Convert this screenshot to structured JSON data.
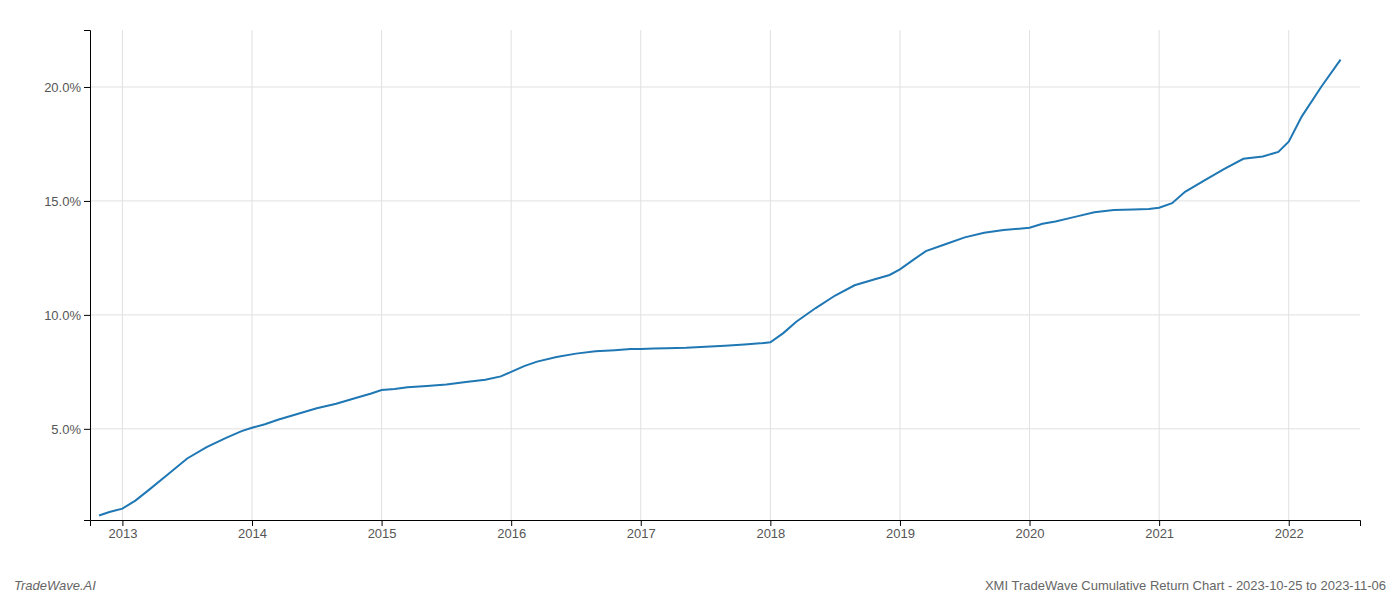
{
  "chart_data": {
    "type": "line",
    "title": "XMI TradeWave Cumulative Return Chart - 2023-10-25 to 2023-11-06",
    "annotations": [
      "TradeWave.AI"
    ],
    "color": "#1f77b4",
    "grid": true,
    "x": [
      2012.82,
      2012.9,
      2013.0,
      2013.1,
      2013.2,
      2013.35,
      2013.5,
      2013.65,
      2013.8,
      2013.92,
      2014.0,
      2014.1,
      2014.2,
      2014.35,
      2014.5,
      2014.65,
      2014.8,
      2014.92,
      2015.0,
      2015.1,
      2015.2,
      2015.35,
      2015.5,
      2015.65,
      2015.8,
      2015.92,
      2016.0,
      2016.1,
      2016.2,
      2016.35,
      2016.5,
      2016.65,
      2016.8,
      2016.92,
      2017.0,
      2017.1,
      2017.2,
      2017.35,
      2017.5,
      2017.65,
      2017.8,
      2017.92,
      2018.0,
      2018.1,
      2018.2,
      2018.35,
      2018.5,
      2018.65,
      2018.8,
      2018.92,
      2019.0,
      2019.1,
      2019.2,
      2019.35,
      2019.5,
      2019.65,
      2019.8,
      2019.92,
      2020.0,
      2020.1,
      2020.2,
      2020.35,
      2020.5,
      2020.65,
      2020.8,
      2020.92,
      2021.0,
      2021.1,
      2021.2,
      2021.35,
      2021.5,
      2021.65,
      2021.8,
      2021.92,
      2022.0,
      2022.1,
      2022.25,
      2022.4
    ],
    "values": [
      1.2,
      1.35,
      1.5,
      1.85,
      2.3,
      3.0,
      3.7,
      4.2,
      4.6,
      4.9,
      5.05,
      5.2,
      5.4,
      5.65,
      5.9,
      6.1,
      6.35,
      6.55,
      6.7,
      6.75,
      6.82,
      6.88,
      6.95,
      7.05,
      7.15,
      7.3,
      7.5,
      7.75,
      7.95,
      8.15,
      8.3,
      8.4,
      8.45,
      8.5,
      8.5,
      8.52,
      8.54,
      8.56,
      8.6,
      8.65,
      8.7,
      8.75,
      8.8,
      9.2,
      9.7,
      10.3,
      10.85,
      11.3,
      11.55,
      11.75,
      12.0,
      12.4,
      12.8,
      13.1,
      13.4,
      13.6,
      13.72,
      13.78,
      13.82,
      14.0,
      14.1,
      14.3,
      14.5,
      14.6,
      14.62,
      14.65,
      14.7,
      14.9,
      15.4,
      15.9,
      16.4,
      16.85,
      16.95,
      17.15,
      17.6,
      18.7,
      20.0,
      21.2
    ],
    "xlim": [
      2012.75,
      2022.55
    ],
    "xticks": [
      2013,
      2014,
      2015,
      2016,
      2017,
      2018,
      2019,
      2020,
      2021,
      2022
    ],
    "ylim": [
      1.0,
      22.5
    ],
    "yticks": [
      {
        "value": 5.0,
        "label": "5.0%"
      },
      {
        "value": 10.0,
        "label": "10.0%"
      },
      {
        "value": 15.0,
        "label": "15.0%"
      },
      {
        "value": 20.0,
        "label": "20.0%"
      }
    ]
  }
}
